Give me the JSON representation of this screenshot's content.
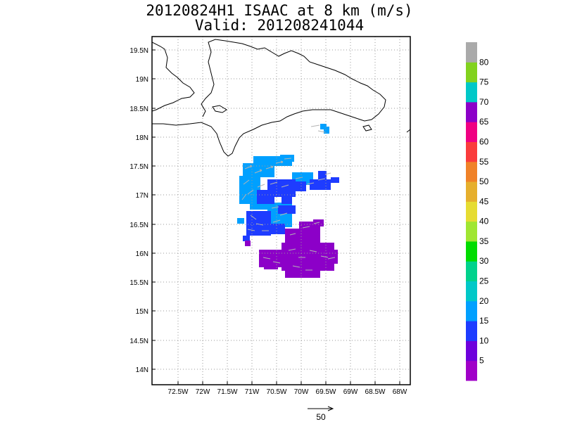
{
  "title": {
    "line1": "20120824H1 ISAAC at 8 km (m/s)",
    "line2": "Valid: 201208241044"
  },
  "map": {
    "lon_labels": [
      "72.5W",
      "72W",
      "71.5W",
      "71W",
      "70.5W",
      "70W",
      "69.5W",
      "69W",
      "68.5W",
      "68W"
    ],
    "lat_labels": [
      "19.5N",
      "19N",
      "18.5N",
      "18N",
      "17.5N",
      "17N",
      "16.5N",
      "16N",
      "15.5N",
      "15N",
      "14.5N",
      "14N"
    ],
    "lon_range": [
      "72.9W",
      "67.9W"
    ],
    "lat_range": [
      "13.7N",
      "19.7N"
    ],
    "grid": "dotted"
  },
  "colorbar": {
    "labels": [
      "5",
      "10",
      "15",
      "20",
      "25",
      "30",
      "35",
      "40",
      "45",
      "50",
      "55",
      "60",
      "65",
      "70",
      "75",
      "80"
    ],
    "colors": [
      "#a000c8",
      "#6e00dc",
      "#1e3cff",
      "#00a0ff",
      "#00c8c8",
      "#00d28c",
      "#00dc00",
      "#a0e632",
      "#e6dc32",
      "#e6af2d",
      "#f08228",
      "#fa3c3c",
      "#f00082",
      "#8c00c8",
      "#00c8c8",
      "#82d21e",
      "#aaaaaa"
    ]
  },
  "vector_key": {
    "label": "50"
  },
  "wind_field": {
    "units": "m/s",
    "level": "8 km"
  }
}
